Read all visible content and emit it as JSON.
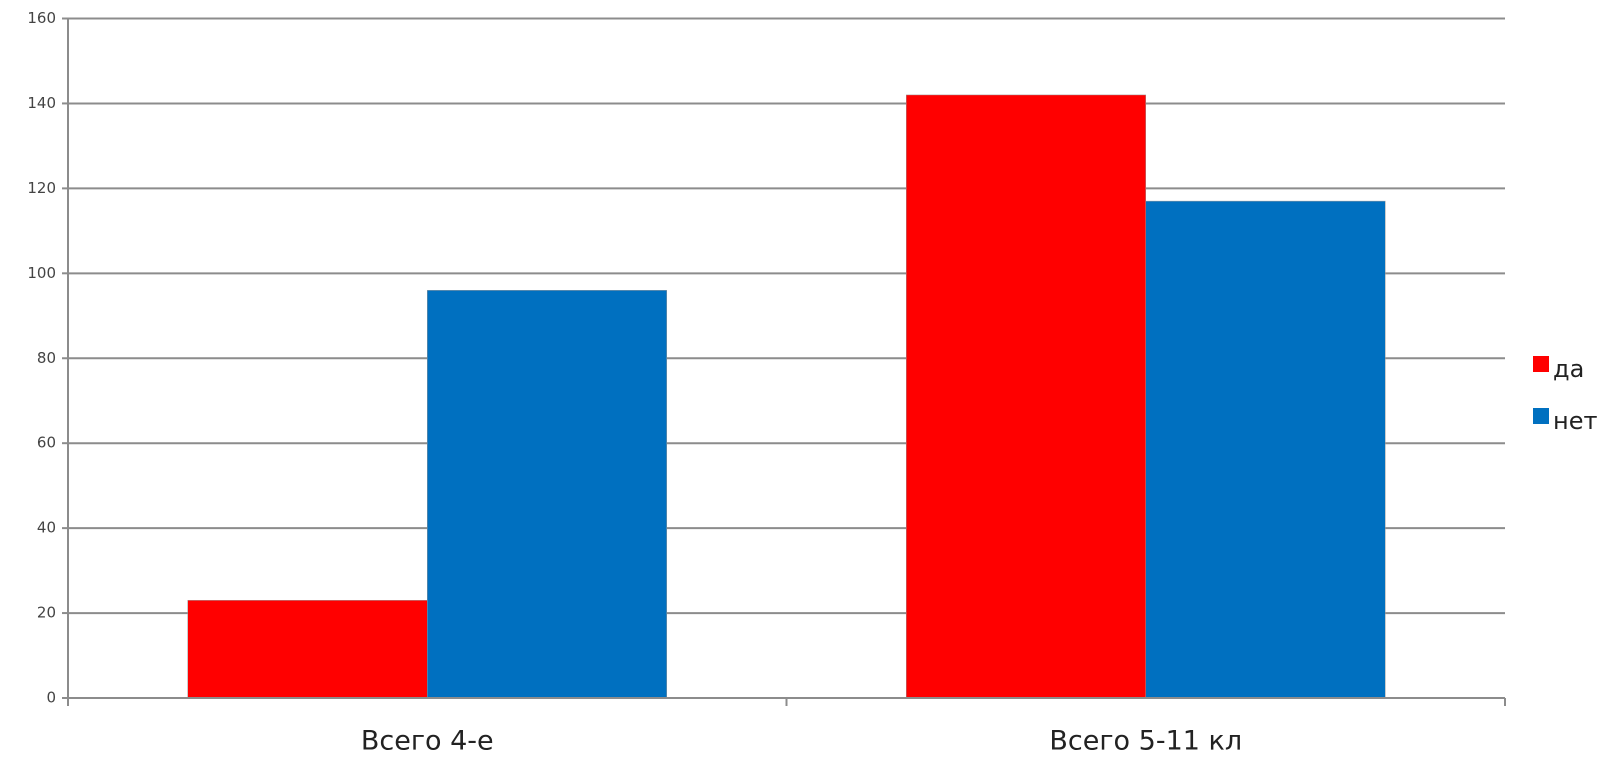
{
  "chart_data": {
    "type": "bar",
    "categories": [
      "Всего 4-е",
      "Всего 5-11 кл"
    ],
    "series": [
      {
        "name": "да",
        "color": "#ff0000",
        "values": [
          23,
          142
        ]
      },
      {
        "name": "нет",
        "color": "#0070c0",
        "values": [
          96,
          117
        ]
      }
    ],
    "ylim": [
      0,
      160
    ],
    "yticks": [
      0,
      20,
      40,
      60,
      80,
      100,
      120,
      140,
      160
    ],
    "grid": true,
    "legend": "right"
  }
}
